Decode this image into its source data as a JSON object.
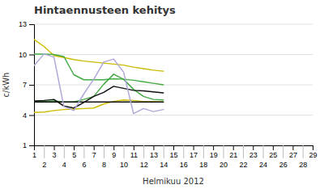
{
  "chart_data": {
    "type": "line",
    "title": "Hintaennusteen kehitys",
    "xlabel": "Helmikuu 2012",
    "ylabel": "c/kWh",
    "x": [
      1,
      2,
      3,
      4,
      5,
      6,
      7,
      8,
      9,
      10,
      11,
      12,
      13,
      14
    ],
    "series": [
      {
        "color": "#ccbb00",
        "values": [
          11.5,
          10.8,
          9.9,
          9.7,
          9.5,
          9.35,
          9.25,
          9.15,
          9.05,
          8.95,
          8.75,
          8.6,
          8.45,
          8.35
        ]
      },
      {
        "color": "#ccbb00",
        "values": [
          4.25,
          4.3,
          4.45,
          4.55,
          4.6,
          4.65,
          4.7,
          5.1,
          5.35,
          5.5,
          5.45,
          5.35,
          5.35,
          5.3
        ]
      },
      {
        "color": "#44aa44",
        "values": [
          10.05,
          10.05,
          10.0,
          9.8,
          8.0,
          7.5,
          7.5,
          7.5,
          7.6,
          7.55,
          7.45,
          7.3,
          7.15,
          7.0
        ]
      },
      {
        "color": "#44aa44",
        "values": [
          5.35,
          5.35,
          5.4,
          5.3,
          5.3,
          5.55,
          5.85,
          7.05,
          8.05,
          7.55,
          6.55,
          5.85,
          5.55,
          5.5
        ]
      },
      {
        "color": "#111111",
        "values": [
          5.3,
          5.3,
          5.3,
          5.3,
          5.3,
          5.3,
          5.3,
          5.3,
          5.3,
          5.3,
          5.3,
          5.3,
          5.3,
          5.3
        ]
      },
      {
        "color": "#111111",
        "values": [
          5.4,
          5.45,
          5.55,
          4.9,
          4.7,
          5.25,
          5.85,
          6.25,
          6.85,
          6.65,
          6.45,
          6.4,
          6.3,
          6.2
        ]
      },
      {
        "color": "#b0a8d8",
        "values": [
          8.9,
          10.05,
          9.75,
          4.85,
          4.45,
          6.1,
          7.55,
          9.25,
          9.55,
          8.25,
          4.15,
          4.65,
          4.35,
          4.55
        ]
      }
    ],
    "xlim": [
      1,
      29
    ],
    "xticks": [
      1,
      2,
      3,
      4,
      5,
      6,
      7,
      8,
      9,
      10,
      11,
      12,
      13,
      14,
      15,
      16,
      17,
      18,
      19,
      20,
      21,
      22,
      23,
      24,
      25,
      26,
      27,
      28,
      29
    ],
    "ylim": [
      1,
      13
    ],
    "yticks": [
      1,
      4,
      7,
      10,
      13
    ],
    "grid": "y"
  }
}
